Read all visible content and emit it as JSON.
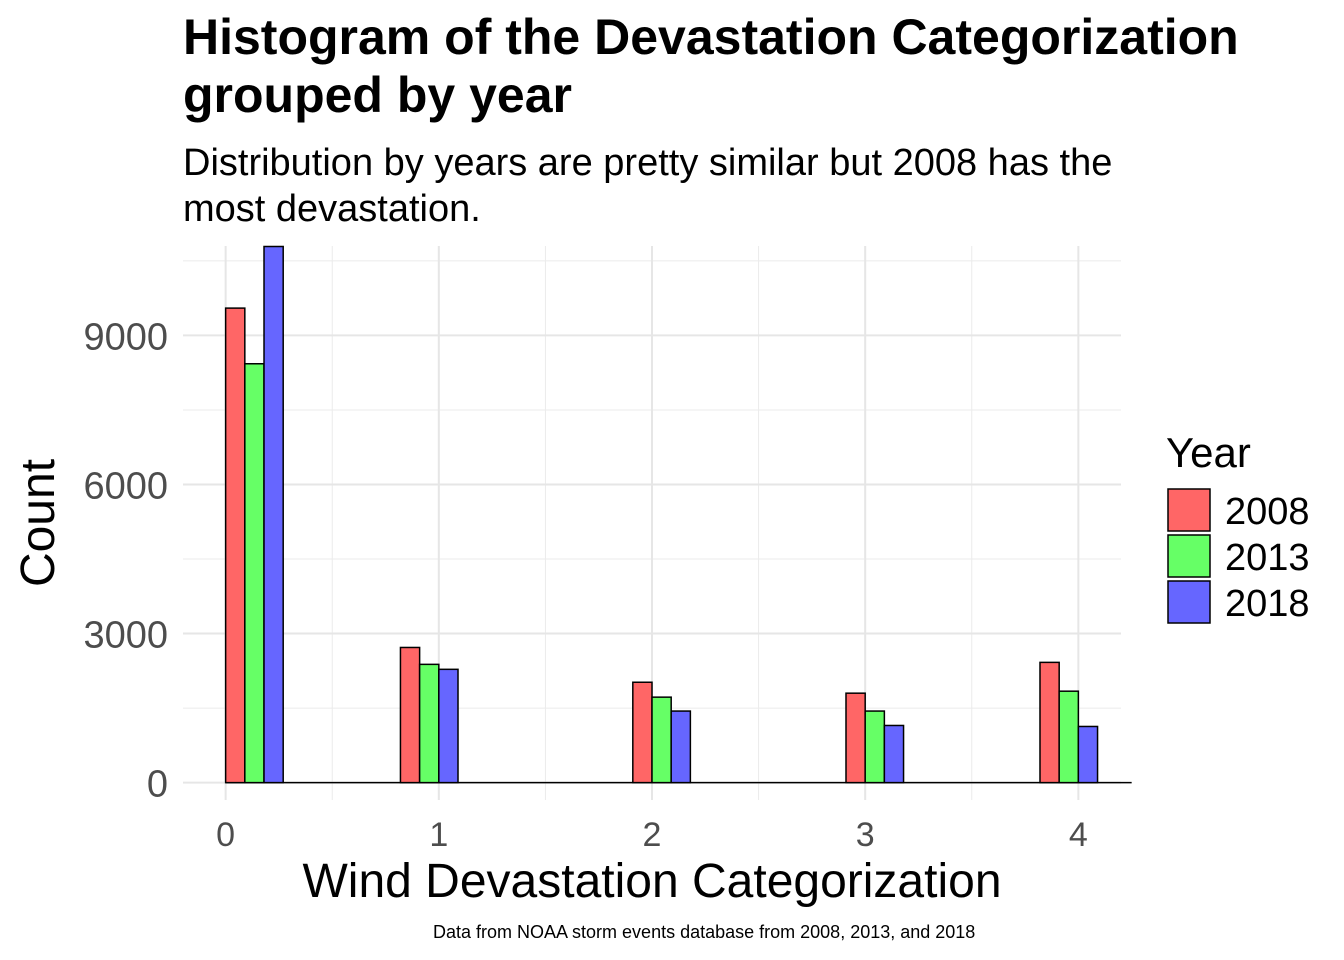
{
  "chart_data": {
    "type": "bar",
    "title_lines": [
      "Histogram of the Devastation Categorization",
      "grouped by year"
    ],
    "subtitle_lines": [
      "Distribution by years are pretty similar but 2008 has the",
      "most devastation."
    ],
    "caption": "Data from NOAA storm events database from 2008, 2013, and 2018",
    "xlabel": "Wind Devastation Categorization",
    "ylabel": "Count",
    "categories": [
      "0",
      "1",
      "2",
      "3",
      "4"
    ],
    "x_values": [
      0,
      1,
      2,
      3,
      4
    ],
    "xlim": [
      -0.2,
      4.2
    ],
    "ylim": [
      -350,
      10800
    ],
    "y_ticks": [
      0,
      3000,
      6000,
      9000
    ],
    "y_tick_labels": [
      "0",
      "3000",
      "6000",
      "9000"
    ],
    "grid": true,
    "legend": {
      "title": "Year",
      "placement": "right"
    },
    "series": [
      {
        "name": "2008",
        "color": "#FF6666",
        "values": [
          9550,
          2720,
          2020,
          1800,
          2420
        ]
      },
      {
        "name": "2013",
        "color": "#66FF66",
        "values": [
          8430,
          2380,
          1720,
          1440,
          1840
        ]
      },
      {
        "name": "2018",
        "color": "#6666FF",
        "values": [
          10790,
          2280,
          1440,
          1150,
          1130
        ]
      }
    ]
  }
}
